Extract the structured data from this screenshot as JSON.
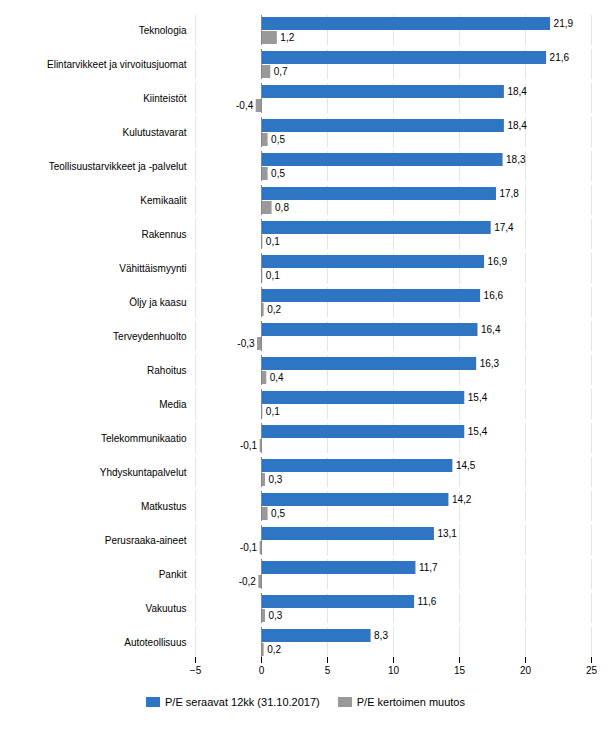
{
  "chart_data": {
    "type": "bar",
    "orientation": "horizontal",
    "categories": [
      "Teknologia",
      "Elintarvikkeet ja virvoitusjuomat",
      "Kiinteistöt",
      "Kulutustavarat",
      "Teollisuustarvikkeet ja -palvelut",
      "Kemikaalit",
      "Rakennus",
      "Vähittäismyynti",
      "Öljy ja kaasu",
      "Terveydenhuolto",
      "Rahoitus",
      "Media",
      "Telekommunikaatio",
      "Yhdyskuntapalvelut",
      "Matkustus",
      "Perusraaka-aineet",
      "Pankit",
      "Vakuutus",
      "Autoteollisuus"
    ],
    "series": [
      {
        "name": "P/E seraavat 12kk (31.10.2017)",
        "color": "#2E75C3",
        "values": [
          21.9,
          21.6,
          18.4,
          18.4,
          18.3,
          17.8,
          17.4,
          16.9,
          16.6,
          16.4,
          16.3,
          15.4,
          15.4,
          14.5,
          14.2,
          13.1,
          11.7,
          11.6,
          8.3
        ],
        "value_labels": [
          "21,9",
          "21,6",
          "18,4",
          "18,4",
          "18,3",
          "17,8",
          "17,4",
          "16,9",
          "16,6",
          "16,4",
          "16,3",
          "15,4",
          "15,4",
          "14,5",
          "14,2",
          "13,1",
          "11,7",
          "11,6",
          "8,3"
        ]
      },
      {
        "name": "P/E kertoimen muutos",
        "color": "#999999",
        "values": [
          1.2,
          0.7,
          -0.4,
          0.5,
          0.5,
          0.8,
          0.1,
          0.1,
          0.2,
          -0.3,
          0.4,
          0.1,
          -0.1,
          0.3,
          0.5,
          -0.1,
          -0.2,
          0.3,
          0.2
        ],
        "value_labels": [
          "1,2",
          "0,7",
          "-0,4",
          "0,5",
          "0,5",
          "0,8",
          "0,1",
          "0,1",
          "0,2",
          "-0,3",
          "0,4",
          "0,1",
          "-0,1",
          "0,3",
          "0,5",
          "-0,1",
          "-0,2",
          "0,3",
          "0,2"
        ]
      }
    ],
    "xlim": [
      -5,
      25
    ],
    "xticks": [
      -5,
      0,
      5,
      10,
      15,
      20,
      25
    ],
    "grid": true,
    "legend": "bottom",
    "data_labels": true
  }
}
